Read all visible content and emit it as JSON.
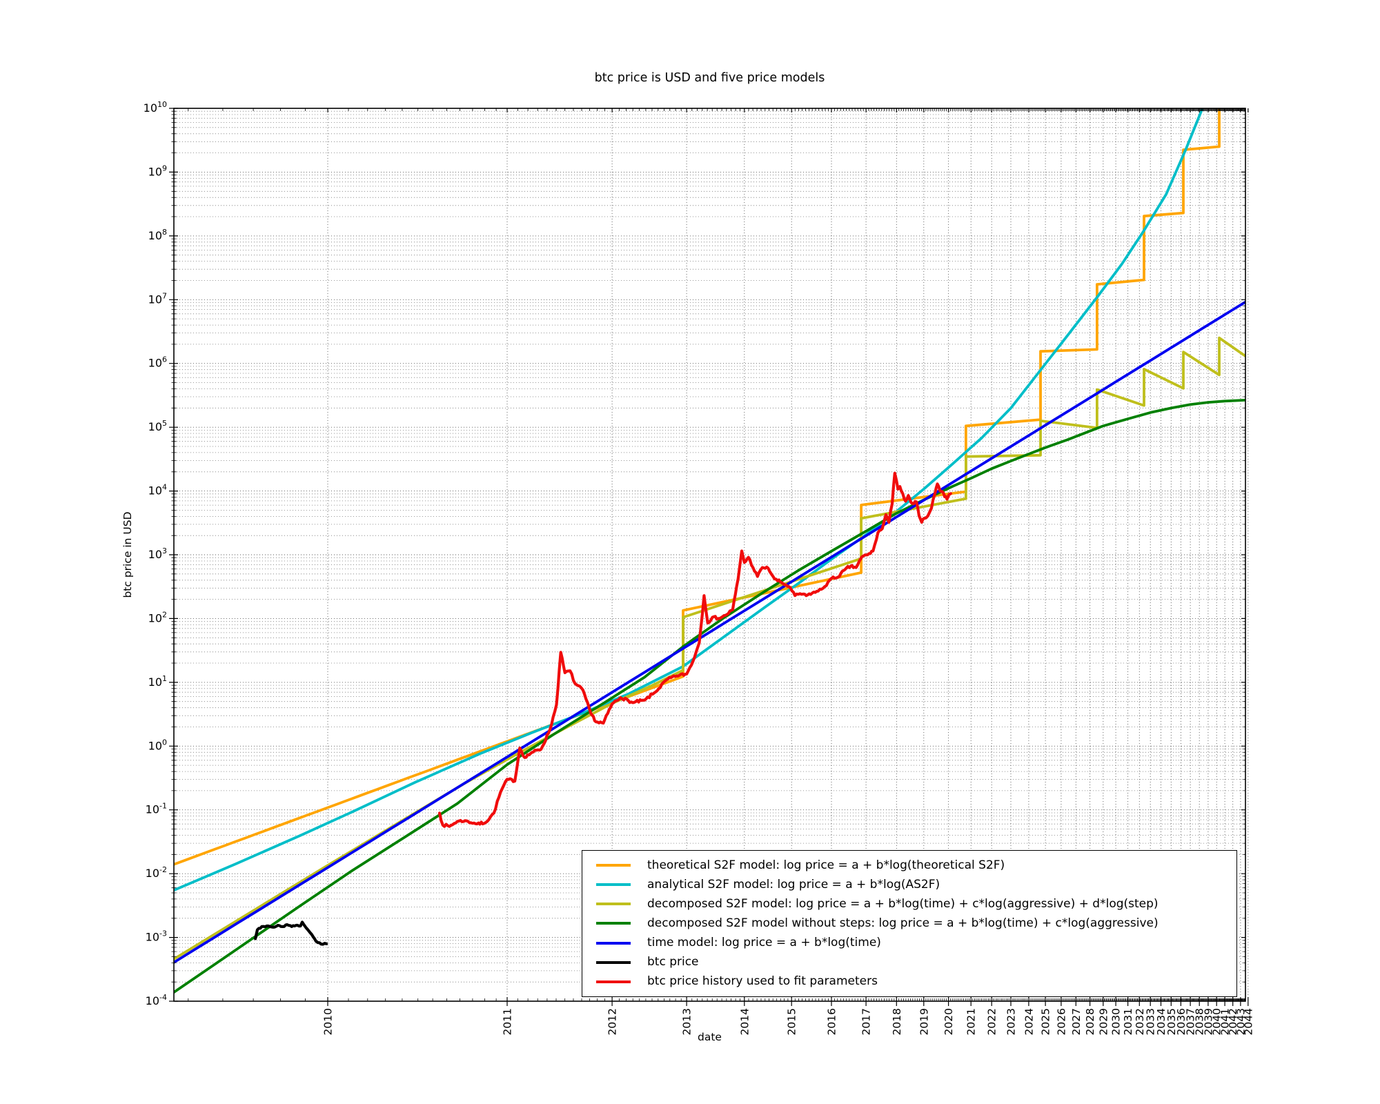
{
  "title": "btc price is USD and five price models",
  "axes": {
    "xlabel": "date",
    "ylabel": "btc price in USD",
    "x_scale": "logarithmic in years since 2009.0",
    "y_scale": "logarithmic, USD",
    "t_min": 0.5518,
    "t_max": 34.65,
    "x_tick_years": [
      2010,
      2011,
      2012,
      2013,
      2014,
      2015,
      2016,
      2017,
      2018,
      2019,
      2020,
      2021,
      2022,
      2023,
      2024,
      2025,
      2026,
      2027,
      2028,
      2029,
      2030,
      2031,
      2032,
      2033,
      2034,
      2035,
      2036,
      2037,
      2038,
      2039,
      2040,
      2041,
      2042,
      2043,
      2044
    ],
    "y_tick_exponents": [
      -4,
      -3,
      -2,
      -1,
      0,
      1,
      2,
      3,
      4,
      5,
      6,
      7,
      8,
      9,
      10
    ]
  },
  "legend": {
    "items": [
      {
        "label": "theoretical S2F model: log price = a + b*log(theoretical S2F)",
        "color": "#FFA500"
      },
      {
        "label": "analytical S2F model: log price = a + b*log(AS2F)",
        "color": "#00BEC8"
      },
      {
        "label": "decomposed S2F model: log price = a + b*log(time) + c*log(aggressive) + d*log(step)",
        "color": "#BFBF1C"
      },
      {
        "label": "decomposed S2F model without steps: log price = a + b*log(time) + c*log(aggressive)",
        "color": "#008000"
      },
      {
        "label": "time model: log price = a + b*log(time)",
        "color": "#0000F0"
      },
      {
        "label": "btc price",
        "color": "#000000"
      },
      {
        "label": "btc price history used to fit parameters",
        "color": "#F00C0C"
      }
    ]
  },
  "chart_data": {
    "type": "line",
    "title": "btc price is USD and five price models",
    "xlabel": "date",
    "ylabel": "btc price in USD",
    "x_unit": "t = years since 2009.0, plotted on log axis (2010=1 ... 2044=35)",
    "y_unit": "log10 of price in USD, axis range 1e-4 to 1e10",
    "grid": "dotted, major years vertical, log decades + minors horizontal",
    "legend_position": "lower right",
    "halving_step_times_t": [
      3.946,
      7.853,
      11.77,
      15.7,
      19.53,
      23.42,
      27.26,
      31.31
    ],
    "series": [
      {
        "name": "theoretical-s2f",
        "color": "#FFA500",
        "kind": "step",
        "pre_era_powerlaw": {
          "a": -0.964,
          "b": 3.448,
          "t_end": 3.946
        },
        "eras": [
          [
            3.946,
            2.127,
            7.853,
            2.72
          ],
          [
            7.853,
            3.78,
            11.77,
            3.99
          ],
          [
            11.77,
            5.02,
            15.7,
            5.12
          ],
          [
            15.7,
            6.19,
            19.53,
            6.22
          ],
          [
            19.53,
            7.24,
            23.42,
            7.31
          ],
          [
            23.42,
            8.31,
            27.26,
            8.36
          ],
          [
            27.26,
            9.35,
            31.31,
            9.4
          ],
          [
            31.31,
            10.6,
            34.65,
            10.65
          ]
        ]
      },
      {
        "name": "analytical-s2f",
        "color": "#00BEC8",
        "kind": "samples",
        "points": [
          [
            0.5518,
            -2.26
          ],
          [
            0.7,
            -1.85
          ],
          [
            0.9,
            -1.4
          ],
          [
            1.1,
            -1.03
          ],
          [
            1.4,
            -0.57
          ],
          [
            1.8,
            -0.12
          ],
          [
            2.2,
            0.21
          ],
          [
            2.7,
            0.53
          ],
          [
            3.2,
            0.82
          ],
          [
            3.946,
            1.25
          ],
          [
            4.6,
            1.7
          ],
          [
            5.4,
            2.17
          ],
          [
            6.2,
            2.57
          ],
          [
            7.0,
            2.93
          ],
          [
            8.0,
            3.315
          ],
          [
            9.0,
            3.68
          ],
          [
            10.0,
            4.03
          ],
          [
            11.16,
            4.42
          ],
          [
            12.5,
            4.83
          ],
          [
            14.0,
            5.3
          ],
          [
            15.71,
            5.9
          ],
          [
            17.5,
            6.46
          ],
          [
            19.62,
            7.06
          ],
          [
            21.5,
            7.56
          ],
          [
            23.36,
            8.07
          ],
          [
            25.5,
            8.65
          ],
          [
            27.5,
            9.35
          ],
          [
            29.2,
            9.95
          ],
          [
            29.9,
            10.25
          ]
        ]
      },
      {
        "name": "decomposed-s2f",
        "color": "#BFBF1C",
        "kind": "step",
        "pre_era_points": [
          [
            0.5518,
            -3.34
          ],
          [
            0.8,
            -2.42
          ],
          [
            1.0,
            -1.87
          ],
          [
            1.3,
            -1.23
          ],
          [
            1.7,
            -0.58
          ],
          [
            2.1,
            -0.1
          ],
          [
            2.5,
            0.28
          ],
          [
            3.0,
            0.67
          ],
          [
            3.5,
            0.95
          ],
          [
            3.946,
            1.19
          ]
        ],
        "eras": [
          [
            3.946,
            2.02,
            7.853,
            2.94
          ],
          [
            7.853,
            3.57,
            11.77,
            3.88
          ],
          [
            11.77,
            4.54,
            15.7,
            4.56
          ],
          [
            15.7,
            5.1,
            19.53,
            4.99
          ],
          [
            19.53,
            5.59,
            23.42,
            5.34
          ],
          [
            23.42,
            5.91,
            27.26,
            5.61
          ],
          [
            27.26,
            6.18,
            31.31,
            5.82
          ],
          [
            31.31,
            6.4,
            34.65,
            6.115
          ]
        ]
      },
      {
        "name": "decomposed-s2f-no-steps",
        "color": "#008000",
        "kind": "samples",
        "points": [
          [
            0.5518,
            -3.86
          ],
          [
            0.7,
            -3.2
          ],
          [
            0.9,
            -2.5
          ],
          [
            1.1,
            -1.95
          ],
          [
            1.35,
            -1.42
          ],
          [
            1.65,
            -0.9
          ],
          [
            2.0,
            -0.29
          ],
          [
            2.4,
            0.19
          ],
          [
            2.9,
            0.67
          ],
          [
            3.4,
            1.08
          ],
          [
            3.946,
            1.56
          ],
          [
            4.6,
            2.0
          ],
          [
            5.4,
            2.42
          ],
          [
            6.2,
            2.77
          ],
          [
            7.1,
            3.09
          ],
          [
            8.0,
            3.37
          ],
          [
            9.0,
            3.65
          ],
          [
            10.0,
            3.86
          ],
          [
            11.16,
            4.07
          ],
          [
            12.0,
            4.2
          ],
          [
            13.0,
            4.35
          ],
          [
            14.0,
            4.47
          ],
          [
            15.0,
            4.58
          ],
          [
            16.0,
            4.68
          ],
          [
            17.5,
            4.81
          ],
          [
            19.0,
            4.94
          ],
          [
            20.0,
            5.02
          ],
          [
            22.0,
            5.13
          ],
          [
            24.0,
            5.23
          ],
          [
            26.0,
            5.3
          ],
          [
            28.0,
            5.355
          ],
          [
            30.0,
            5.39
          ],
          [
            32.0,
            5.41
          ],
          [
            34.65,
            5.425
          ]
        ]
      },
      {
        "name": "time-model",
        "color": "#0000F0",
        "kind": "powerlaw",
        "a": -1.904,
        "b": 5.76
      },
      {
        "name": "btc-price",
        "color": "#000000",
        "kind": "noisy",
        "amp": 0.012,
        "seed": 3,
        "points": [
          [
            0.756,
            -3.02
          ],
          [
            0.762,
            -2.88
          ],
          [
            0.775,
            -2.83
          ],
          [
            0.79,
            -2.82
          ],
          [
            0.81,
            -2.84
          ],
          [
            0.825,
            -2.81
          ],
          [
            0.84,
            -2.83
          ],
          [
            0.855,
            -2.8
          ],
          [
            0.87,
            -2.83
          ],
          [
            0.885,
            -2.81
          ],
          [
            0.9,
            -2.82
          ],
          [
            0.906,
            -2.76
          ],
          [
            0.912,
            -2.8
          ],
          [
            0.92,
            -2.85
          ],
          [
            0.935,
            -2.93
          ],
          [
            0.95,
            -3.02
          ],
          [
            0.962,
            -3.08
          ],
          [
            0.975,
            -3.105
          ],
          [
            0.995,
            -3.1
          ]
        ]
      },
      {
        "name": "btc-price-history",
        "color": "#F00C0C",
        "kind": "noisy",
        "amp": 0.025,
        "seed": 7,
        "points": [
          [
            1.54,
            -1.05
          ],
          [
            1.56,
            -1.24
          ],
          [
            1.6,
            -1.26
          ],
          [
            1.65,
            -1.18
          ],
          [
            1.7,
            -1.17
          ],
          [
            1.78,
            -1.22
          ],
          [
            1.84,
            -1.2
          ],
          [
            1.9,
            -1.05
          ],
          [
            1.95,
            -0.72
          ],
          [
            2.0,
            -0.52
          ],
          [
            2.06,
            -0.55
          ],
          [
            2.1,
            -0.03
          ],
          [
            2.14,
            -0.18
          ],
          [
            2.2,
            -0.1
          ],
          [
            2.28,
            -0.05
          ],
          [
            2.36,
            0.26
          ],
          [
            2.42,
            0.65
          ],
          [
            2.46,
            1.47
          ],
          [
            2.5,
            1.15
          ],
          [
            2.55,
            1.18
          ],
          [
            2.6,
            0.98
          ],
          [
            2.68,
            0.88
          ],
          [
            2.76,
            0.52
          ],
          [
            2.82,
            0.38
          ],
          [
            2.9,
            0.36
          ],
          [
            3.0,
            0.66
          ],
          [
            3.1,
            0.76
          ],
          [
            3.25,
            0.68
          ],
          [
            3.4,
            0.72
          ],
          [
            3.55,
            0.85
          ],
          [
            3.7,
            1.04
          ],
          [
            3.85,
            1.1
          ],
          [
            4.0,
            1.13
          ],
          [
            4.1,
            1.33
          ],
          [
            4.2,
            1.62
          ],
          [
            4.28,
            2.36
          ],
          [
            4.34,
            1.93
          ],
          [
            4.42,
            2.02
          ],
          [
            4.52,
            2.0
          ],
          [
            4.65,
            2.05
          ],
          [
            4.78,
            2.14
          ],
          [
            4.88,
            2.62
          ],
          [
            4.95,
            3.06
          ],
          [
            5.0,
            2.88
          ],
          [
            5.08,
            2.96
          ],
          [
            5.17,
            2.8
          ],
          [
            5.26,
            2.66
          ],
          [
            5.36,
            2.8
          ],
          [
            5.48,
            2.79
          ],
          [
            5.62,
            2.62
          ],
          [
            5.78,
            2.56
          ],
          [
            5.94,
            2.5
          ],
          [
            6.08,
            2.36
          ],
          [
            6.2,
            2.39
          ],
          [
            6.35,
            2.36
          ],
          [
            6.5,
            2.4
          ],
          [
            6.65,
            2.43
          ],
          [
            6.82,
            2.5
          ],
          [
            7.0,
            2.63
          ],
          [
            7.18,
            2.65
          ],
          [
            7.38,
            2.77
          ],
          [
            7.54,
            2.82
          ],
          [
            7.7,
            2.8
          ],
          [
            7.88,
            2.97
          ],
          [
            8.05,
            3.0
          ],
          [
            8.22,
            3.06
          ],
          [
            8.38,
            3.35
          ],
          [
            8.52,
            3.41
          ],
          [
            8.64,
            3.63
          ],
          [
            8.74,
            3.51
          ],
          [
            8.85,
            3.8
          ],
          [
            8.94,
            4.28
          ],
          [
            9.0,
            4.16
          ],
          [
            9.05,
            4.03
          ],
          [
            9.12,
            4.07
          ],
          [
            9.22,
            3.96
          ],
          [
            9.32,
            3.84
          ],
          [
            9.42,
            3.93
          ],
          [
            9.52,
            3.82
          ],
          [
            9.62,
            3.8
          ],
          [
            9.72,
            3.83
          ],
          [
            9.82,
            3.61
          ],
          [
            9.92,
            3.51
          ],
          [
            10.02,
            3.57
          ],
          [
            10.16,
            3.61
          ],
          [
            10.3,
            3.73
          ],
          [
            10.44,
            3.96
          ],
          [
            10.54,
            4.11
          ],
          [
            10.64,
            4.01
          ],
          [
            10.74,
            3.99
          ],
          [
            10.84,
            3.91
          ],
          [
            10.94,
            3.87
          ],
          [
            11.02,
            3.94
          ],
          [
            11.1,
            3.96
          ]
        ]
      }
    ]
  }
}
